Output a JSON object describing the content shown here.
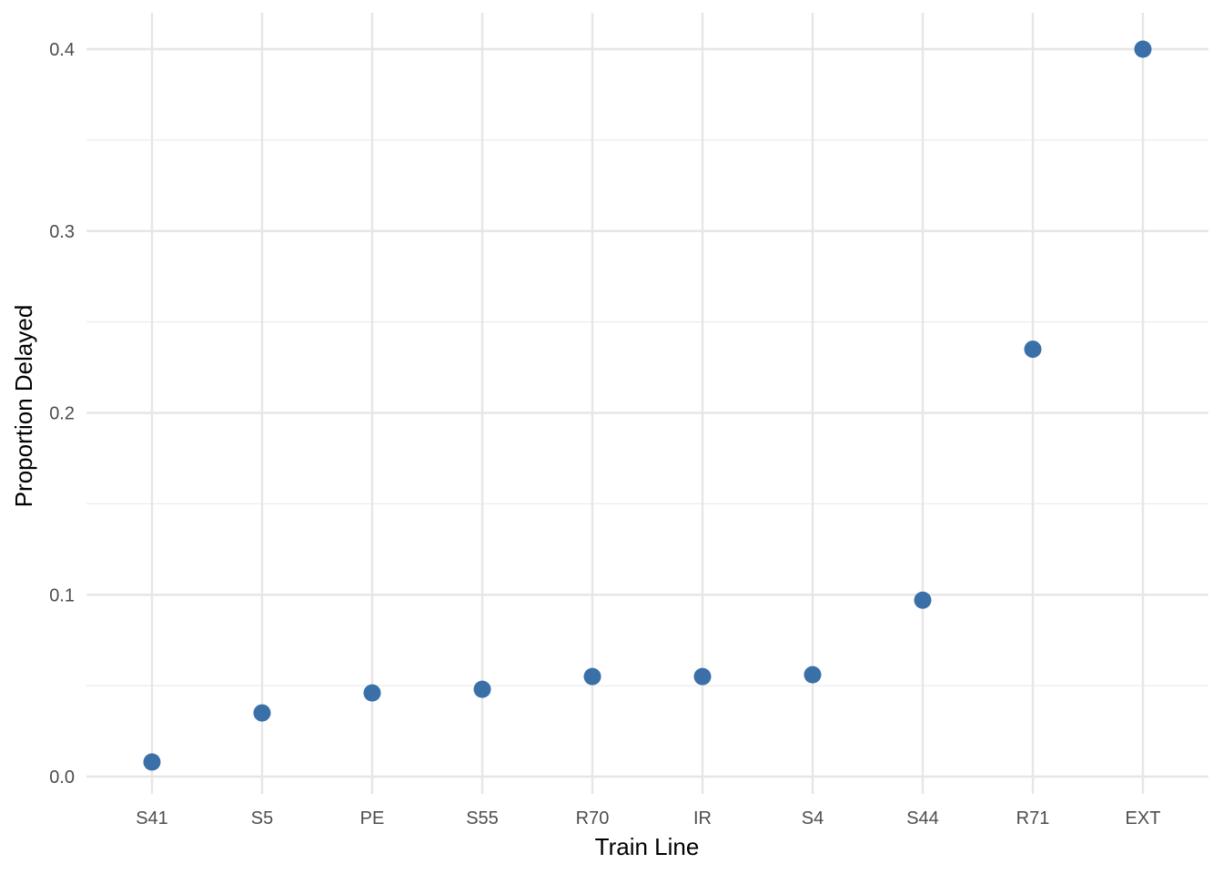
{
  "chart_data": {
    "type": "scatter",
    "title": "",
    "xlabel": "Train Line",
    "ylabel": "Proportion Delayed",
    "categories": [
      "S41",
      "S5",
      "PE",
      "S55",
      "R70",
      "IR",
      "S4",
      "S44",
      "R71",
      "EXT"
    ],
    "values": [
      0.008,
      0.035,
      0.046,
      0.048,
      0.055,
      0.055,
      0.056,
      0.097,
      0.235,
      0.4
    ],
    "ylim": [
      0,
      0.4
    ],
    "yticks": [
      0.0,
      0.1,
      0.2,
      0.3,
      0.4
    ],
    "ytick_labels": [
      "0.0",
      "0.1",
      "0.2",
      "0.3",
      "0.4"
    ],
    "grid": true,
    "legend": "none",
    "point_color": "#3a6fa8"
  }
}
